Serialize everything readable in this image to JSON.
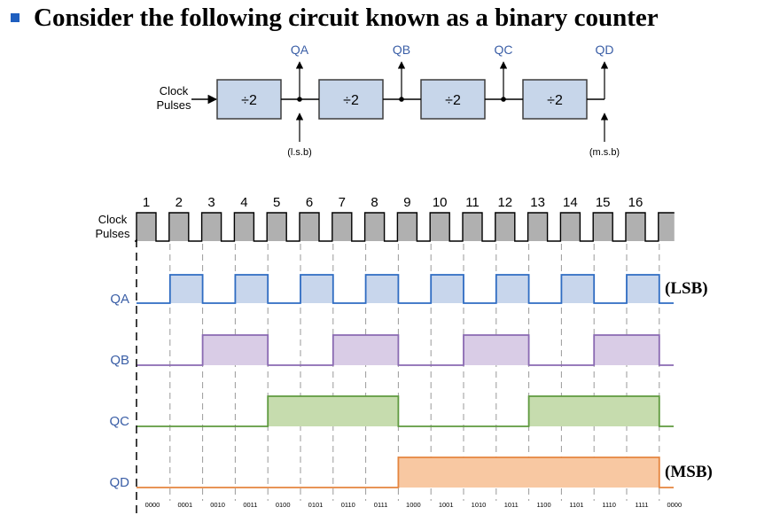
{
  "title": "Consider the following circuit known as a binary counter",
  "colors": {
    "bullet": "#1f5fbf",
    "block_fill": "#c7d6ea",
    "block_stroke": "#3d3d3d",
    "output_label": "#3a5ea6",
    "clock_fill": "#b0b0b0",
    "qa_line": "#2f6cc2",
    "qa_fill": "#c8d6ec",
    "qb_line": "#8a6ab2",
    "qb_fill": "#d9cce6",
    "qc_line": "#5f9a3f",
    "qc_fill": "#c6dcae",
    "qd_line": "#e5853f",
    "qd_fill": "#f8c8a2"
  },
  "block_diagram": {
    "input_label_line1": "Clock",
    "input_label_line2": "Pulses",
    "blocks": [
      "÷2",
      "÷2",
      "÷2",
      "÷2"
    ],
    "outputs": [
      "QA",
      "QB",
      "QC",
      "QD"
    ],
    "lsb_label": "(l.s.b)",
    "msb_label": "(m.s.b)"
  },
  "timing": {
    "pulse_numbers": [
      "1",
      "2",
      "3",
      "4",
      "5",
      "6",
      "7",
      "8",
      "9",
      "10",
      "11",
      "12",
      "13",
      "14",
      "15",
      "16"
    ],
    "clock_label_line1": "Clock",
    "clock_label_line2": "Pulses",
    "signals": [
      {
        "name": "QA",
        "period_pulses": 2
      },
      {
        "name": "QB",
        "period_pulses": 4
      },
      {
        "name": "QC",
        "period_pulses": 8
      },
      {
        "name": "QD",
        "period_pulses": 16
      }
    ],
    "lsb_tag": "(LSB)",
    "msb_tag": "(MSB)",
    "states": [
      "0000",
      "0001",
      "0010",
      "0011",
      "0100",
      "0101",
      "0110",
      "0111",
      "1000",
      "1001",
      "1010",
      "1011",
      "1100",
      "1101",
      "1110",
      "1111",
      "0000"
    ]
  }
}
